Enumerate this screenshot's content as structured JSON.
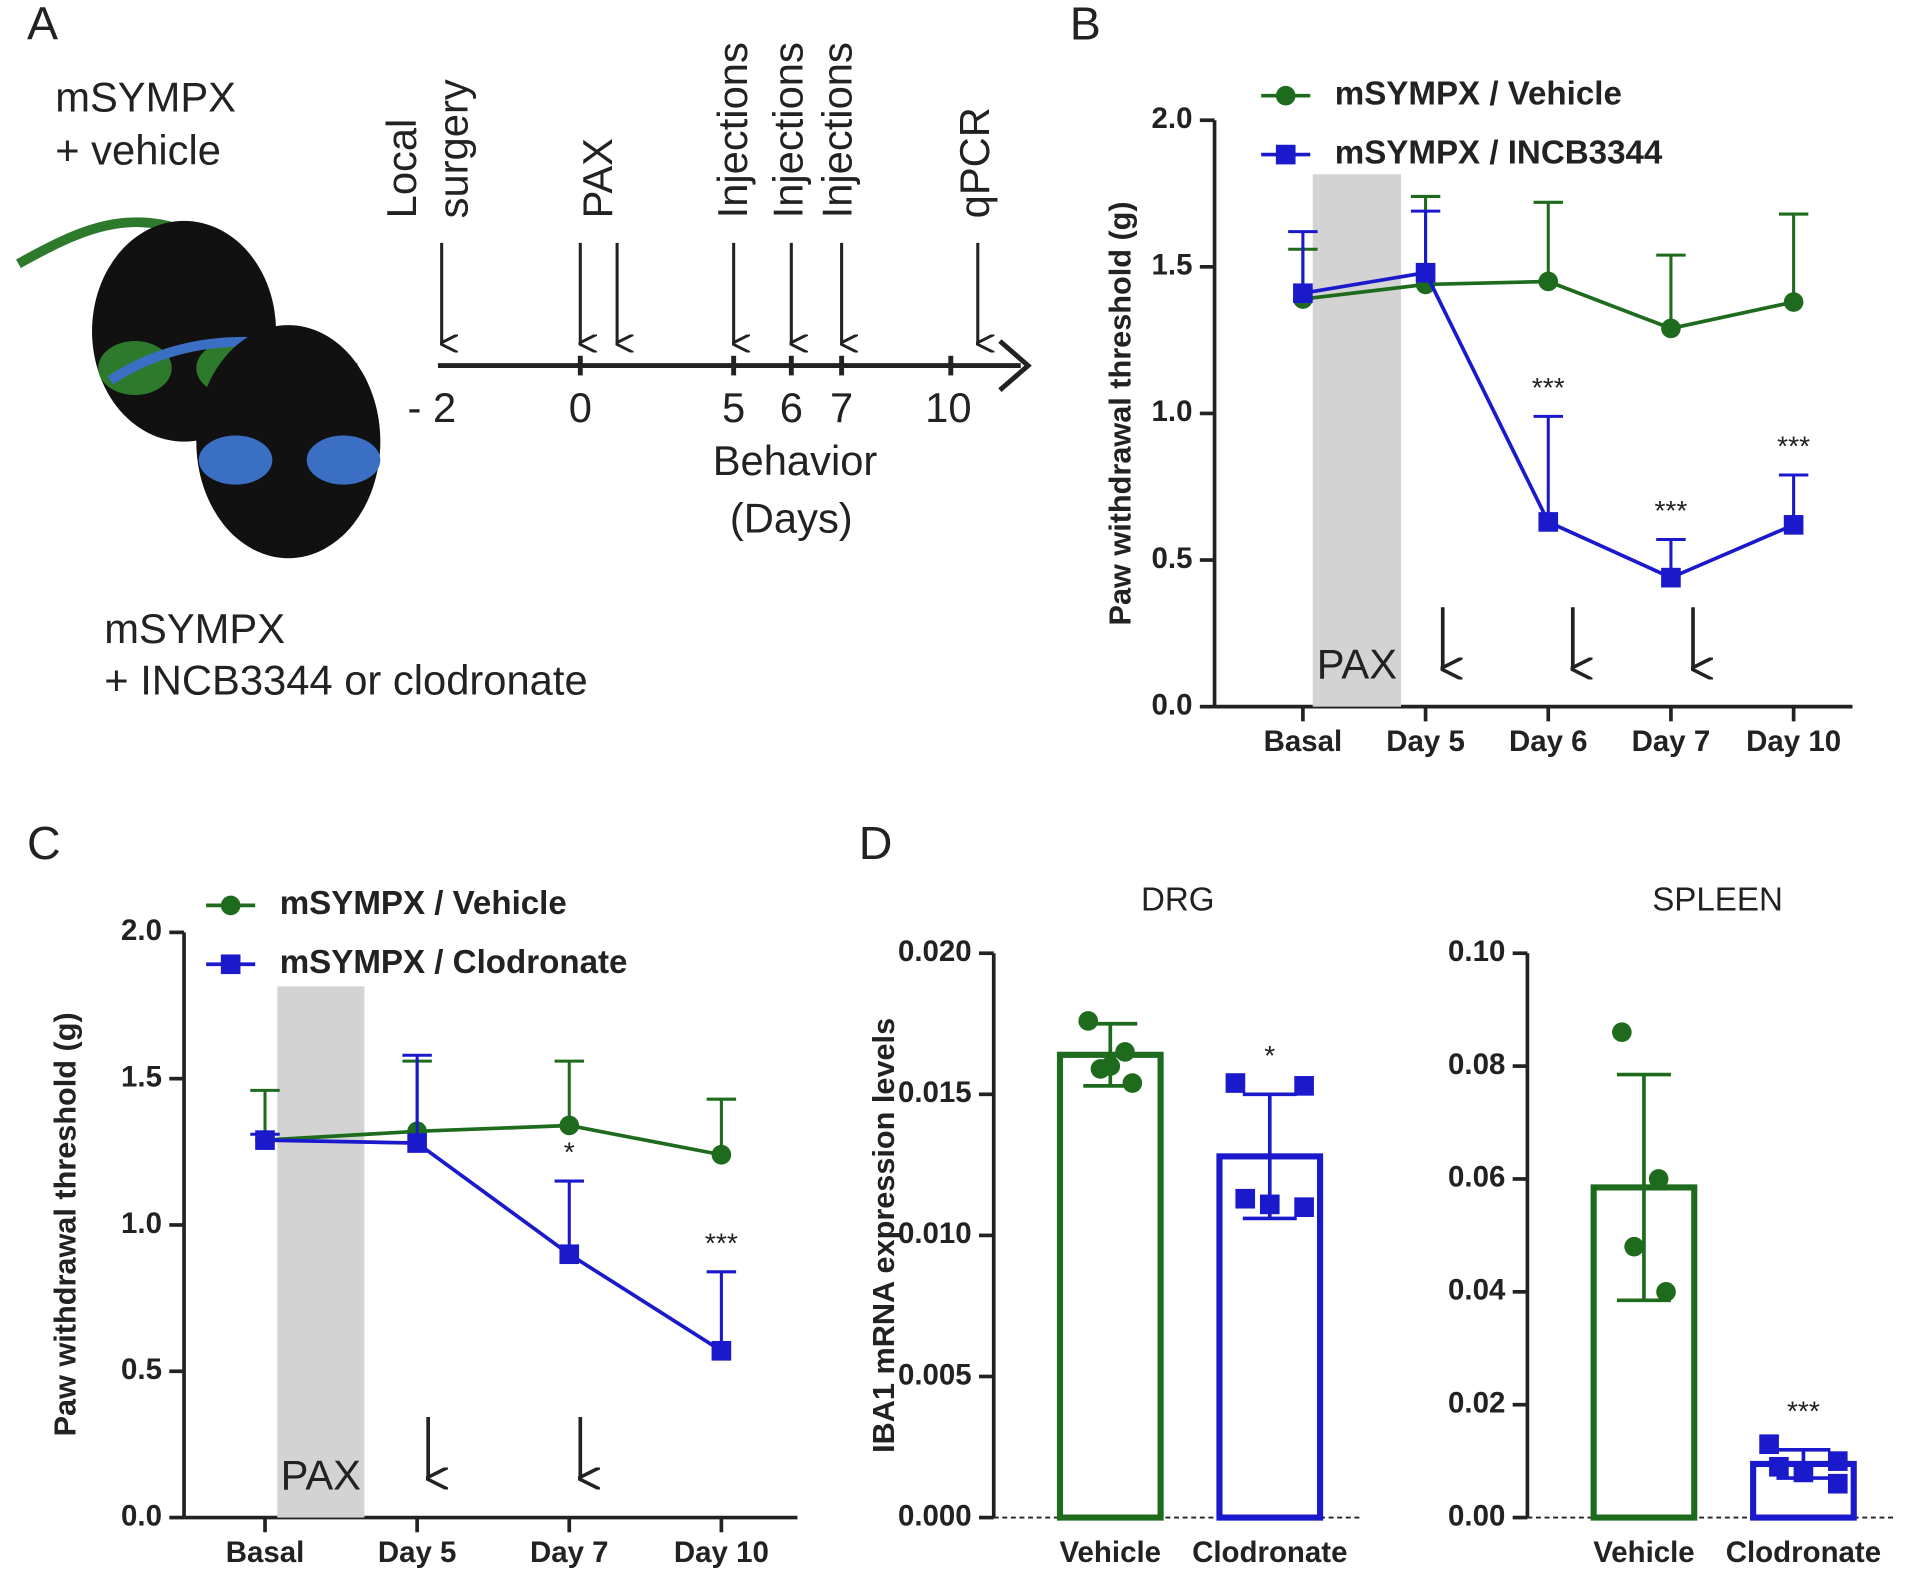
{
  "panels": [
    "A",
    "B",
    "C",
    "D"
  ],
  "diagram": {
    "group_top": [
      "mSYMPX",
      "+ vehicle"
    ],
    "group_bottom": [
      "mSYMPX",
      "+ INCB3344 or clodronate"
    ],
    "events": [
      [
        "Local",
        "surgery"
      ],
      [
        "PAX"
      ],
      [
        "Injections"
      ],
      [
        "Injections"
      ],
      [
        "Injections"
      ],
      [
        "qPCR"
      ]
    ],
    "ticks": [
      "- 2",
      "0",
      "5",
      "6",
      "7",
      "10"
    ],
    "axis_label": [
      "Behavior",
      "(Days)"
    ]
  },
  "chart_data": [
    {
      "type": "line",
      "y_label": "Paw withdrawal threshold (g)",
      "categories": [
        "Basal",
        "Day 5",
        "Day 6",
        "Day 7",
        "Day 10"
      ],
      "ylim": [
        0,
        2
      ],
      "yticks": [
        {
          "value": 0,
          "label": "0.0"
        },
        {
          "value": 0.5,
          "label": "0.5"
        },
        {
          "value": 1,
          "label": "1.0"
        },
        {
          "value": 1.5,
          "label": "1.5"
        },
        {
          "value": 2,
          "label": "2.0"
        }
      ],
      "shaded_label": "PAX",
      "series": [
        {
          "name": "mSYMPX / Vehicle",
          "color": "#1e6b1e",
          "marker": "circle",
          "values": [
            1.39,
            1.44,
            1.45,
            1.29,
            1.38
          ],
          "errors": [
            0.17,
            0.3,
            0.27,
            0.25,
            0.3
          ]
        },
        {
          "name": "mSYMPX / INCB3344",
          "color": "#1a1acc",
          "marker": "square",
          "values": [
            1.41,
            1.48,
            0.63,
            0.44,
            0.62
          ],
          "errors": [
            0.21,
            0.21,
            0.36,
            0.13,
            0.17
          ]
        }
      ],
      "annotations": [
        null,
        null,
        "***",
        "***",
        "***"
      ]
    },
    {
      "type": "line",
      "y_label": "Paw withdrawal threshold (g)",
      "categories": [
        "Basal",
        "Day 5",
        "Day 7",
        "Day 10"
      ],
      "ylim": [
        0,
        2
      ],
      "yticks": [
        {
          "value": 0,
          "label": "0.0"
        },
        {
          "value": 0.5,
          "label": "0.5"
        },
        {
          "value": 1,
          "label": "1.0"
        },
        {
          "value": 1.5,
          "label": "1.5"
        },
        {
          "value": 2,
          "label": "2.0"
        }
      ],
      "shaded_label": "PAX",
      "series": [
        {
          "name": "mSYMPX / Vehicle",
          "color": "#1e6b1e",
          "marker": "circle",
          "values": [
            1.29,
            1.32,
            1.34,
            1.24
          ],
          "errors": [
            0.17,
            0.24,
            0.22,
            0.19
          ]
        },
        {
          "name": "mSYMPX / Clodronate",
          "color": "#1a1acc",
          "marker": "square",
          "values": [
            1.29,
            1.28,
            0.9,
            0.57
          ],
          "errors": [
            0.02,
            0.3,
            0.25,
            0.27
          ]
        }
      ],
      "annotations": [
        null,
        null,
        "*",
        "***"
      ]
    },
    {
      "type": "bar",
      "title": "DRG",
      "y_label": "IBA1 mRNA expression levels",
      "categories": [
        "Vehicle",
        "Clodronate"
      ],
      "values": [
        0.0164,
        0.0128
      ],
      "errors": [
        0.0011,
        0.0022
      ],
      "colors": [
        "#1e6b1e",
        "#1a1acc"
      ],
      "markers": [
        "circle",
        "square"
      ],
      "points": [
        [
          0.0176,
          0.0165,
          0.0159,
          0.0154,
          0.016
        ],
        [
          0.0154,
          0.0153,
          0.0113,
          0.0111,
          0.011
        ]
      ],
      "annotations": [
        null,
        "*"
      ],
      "ylim": [
        0,
        0.02
      ],
      "yticks": [
        {
          "value": 0,
          "label": "0.000"
        },
        {
          "value": 0.005,
          "label": "0.005"
        },
        {
          "value": 0.01,
          "label": "0.010"
        },
        {
          "value": 0.015,
          "label": "0.015"
        },
        {
          "value": 0.02,
          "label": "0.020"
        }
      ]
    },
    {
      "type": "bar",
      "title": "SPLEEN",
      "categories": [
        "Vehicle",
        "Clodronate"
      ],
      "values": [
        0.0585,
        0.0095
      ],
      "errors": [
        0.02,
        0.0025
      ],
      "colors": [
        "#1e6b1e",
        "#1a1acc"
      ],
      "markers": [
        "circle",
        "square"
      ],
      "points": [
        [
          0.086,
          0.06,
          0.048,
          0.04
        ],
        [
          0.013,
          0.01,
          0.009,
          0.008,
          0.006
        ]
      ],
      "annotations": [
        null,
        "***"
      ],
      "ylim": [
        0,
        0.1
      ],
      "yticks": [
        {
          "value": 0,
          "label": "0.00"
        },
        {
          "value": 0.02,
          "label": "0.02"
        },
        {
          "value": 0.04,
          "label": "0.04"
        },
        {
          "value": 0.06,
          "label": "0.06"
        },
        {
          "value": 0.08,
          "label": "0.08"
        },
        {
          "value": 0.1,
          "label": "0.10"
        }
      ]
    }
  ]
}
